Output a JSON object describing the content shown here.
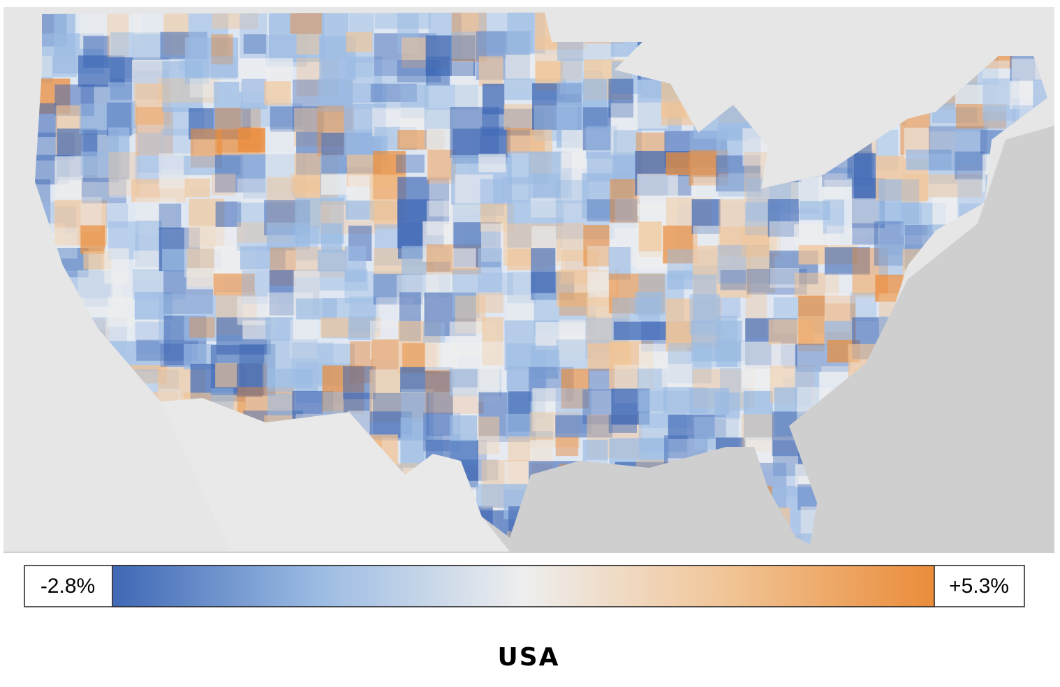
{
  "legend": {
    "min": {
      "value": -2.8,
      "label": "-2.8%"
    },
    "max": {
      "value": 5.3,
      "label": "+5.3%"
    },
    "colors": [
      "#3f68b5",
      "#9bbbe3",
      "#eeeeee",
      "#f1c495",
      "#ea8c3a"
    ]
  },
  "title": "USA"
}
